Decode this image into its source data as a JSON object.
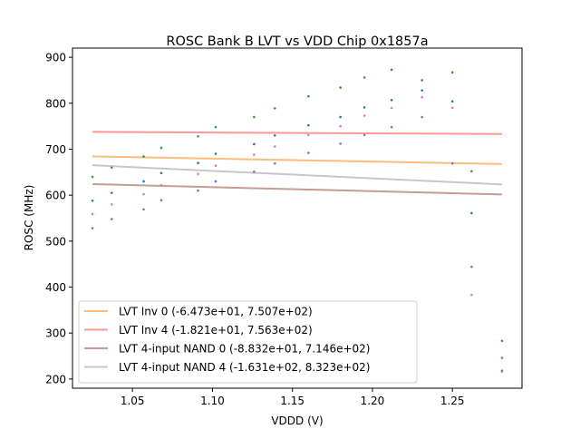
{
  "chart_data": {
    "type": "scatter",
    "title": "ROSC Bank B LVT vs VDD Chip 0x1857a",
    "xlabel": "VDDD (V)",
    "ylabel": "ROSC (MHz)",
    "xlim": [
      1.0125,
      1.2935
    ],
    "ylim": [
      180,
      920
    ],
    "xticks": [
      1.05,
      1.1,
      1.15,
      1.2,
      1.25
    ],
    "xtick_labels": [
      "1.05",
      "1.10",
      "1.15",
      "1.20",
      "1.25"
    ],
    "yticks": [
      200,
      300,
      400,
      500,
      600,
      700,
      800,
      900
    ],
    "ytick_labels": [
      "200",
      "300",
      "400",
      "500",
      "600",
      "700",
      "800",
      "900"
    ],
    "grid": false,
    "legend_position": "lower-left",
    "fit_lines": [
      {
        "name": "LVT Inv 0 (-6.473e+01, 7.507e+02)",
        "color": "#ffbb78",
        "slope": -64.73,
        "intercept": 750.7
      },
      {
        "name": "LVT Inv 4 (-1.821e+01, 7.563e+02)",
        "color": "#ff9896",
        "slope": -18.21,
        "intercept": 756.3
      },
      {
        "name": "LVT 4-input NAND 0 (-8.832e+01, 7.146e+02)",
        "color": "#c49c94",
        "slope": -88.32,
        "intercept": 714.6
      },
      {
        "name": "LVT 4-input NAND 4 (-1.631e+02, 8.323e+02)",
        "color": "#c7c7c7",
        "slope": -163.1,
        "intercept": 832.3
      }
    ],
    "fit_x_range": [
      1.025,
      1.281
    ],
    "scatter_series": [
      {
        "name": "green",
        "color": "#2ca02c",
        "x": [
          1.025,
          1.037,
          1.057,
          1.068,
          1.091,
          1.102,
          1.126,
          1.139,
          1.16,
          1.18,
          1.195,
          1.212,
          1.231,
          1.25,
          1.262,
          1.281
        ],
        "y": [
          640,
          660,
          684,
          703,
          728,
          748,
          770,
          789,
          815,
          834,
          856,
          873,
          850,
          867,
          652,
          283
        ]
      },
      {
        "name": "blue",
        "color": "#1f77b4",
        "x": [
          1.025,
          1.037,
          1.057,
          1.068,
          1.091,
          1.102,
          1.126,
          1.139,
          1.16,
          1.18,
          1.195,
          1.212,
          1.231,
          1.25,
          1.262,
          1.281
        ],
        "y": [
          588,
          605,
          630,
          648,
          670,
          690,
          711,
          730,
          752,
          770,
          791,
          807,
          828,
          804,
          561,
          218
        ]
      },
      {
        "name": "pink",
        "color": "#e377c2",
        "x": [
          1.025,
          1.037,
          1.057,
          1.068,
          1.091,
          1.102,
          1.126,
          1.139,
          1.16,
          1.18,
          1.195,
          1.212,
          1.231,
          1.25,
          1.262,
          1.281
        ],
        "y": [
          559,
          580,
          602,
          622,
          646,
          664,
          688,
          706,
          731,
          750,
          773,
          790,
          813,
          790,
          383,
          216
        ]
      },
      {
        "name": "purple",
        "color": "#9467bd",
        "x": [
          1.025,
          1.037,
          1.057,
          1.068,
          1.091,
          1.102,
          1.126,
          1.139,
          1.16,
          1.18,
          1.195,
          1.212,
          1.231,
          1.25,
          1.262,
          1.281
        ],
        "y": [
          528,
          548,
          569,
          589,
          610,
          630,
          651,
          669,
          692,
          712,
          731,
          748,
          770,
          669,
          444,
          246
        ]
      }
    ]
  }
}
